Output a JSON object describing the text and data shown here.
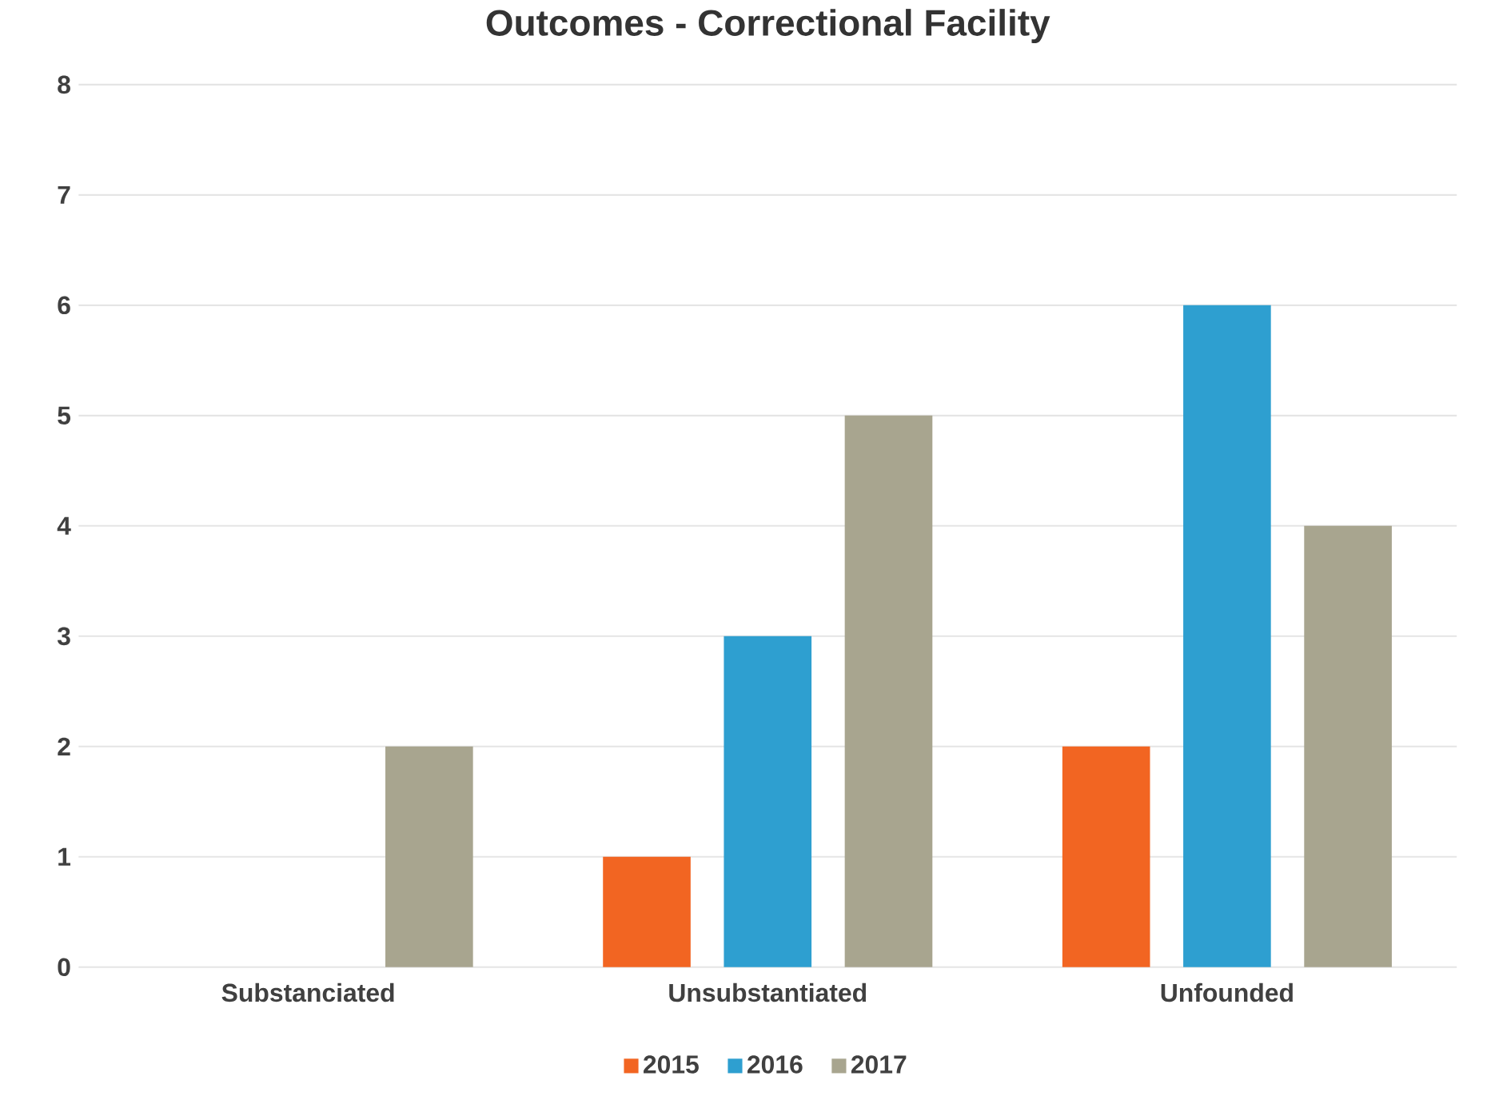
{
  "chart_data": {
    "type": "bar",
    "title": "Outcomes - Correctional Facility",
    "categories": [
      "Substanciated",
      "Unsubstantiated",
      "Unfounded"
    ],
    "series": [
      {
        "name": "2015",
        "color": "#f26522",
        "values": [
          0,
          1,
          2
        ]
      },
      {
        "name": "2016",
        "color": "#2e9fd0",
        "values": [
          0,
          3,
          6
        ]
      },
      {
        "name": "2017",
        "color": "#a8a58f",
        "values": [
          2,
          5,
          4
        ]
      }
    ],
    "ylim": [
      0,
      8
    ],
    "yticks": [
      0,
      1,
      2,
      3,
      4,
      5,
      6,
      7,
      8
    ],
    "grid": "y",
    "legend": "bottom"
  }
}
